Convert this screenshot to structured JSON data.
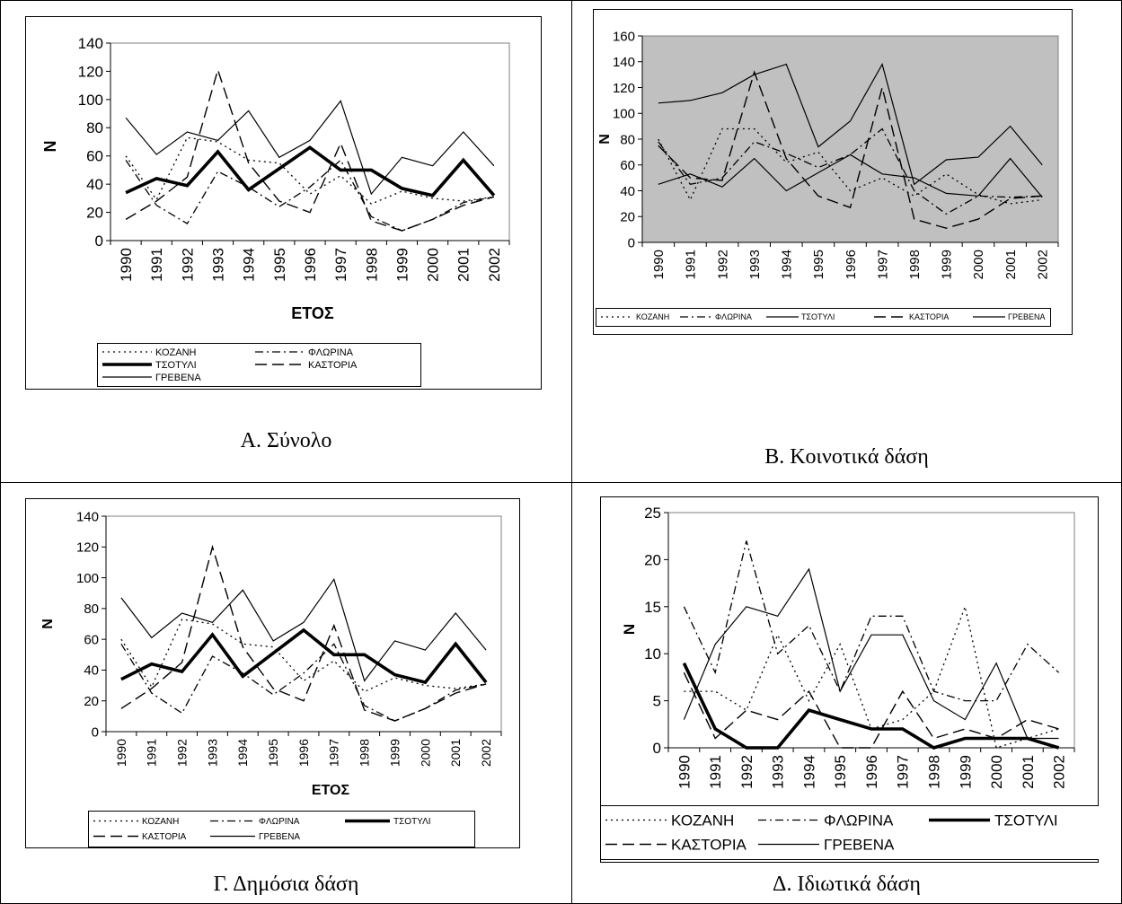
{
  "panels": [
    {
      "caption": "Α. Σύνολο",
      "chart_data": {
        "type": "line",
        "categories": [
          "1990",
          "1991",
          "1992",
          "1993",
          "1994",
          "1995",
          "1996",
          "1997",
          "1998",
          "1999",
          "2000",
          "2001",
          "2002"
        ],
        "ylabel": "N",
        "xlabel": "ΕΤΟΣ",
        "ylim": [
          0,
          140
        ],
        "ystep": 20,
        "background": "#ffffff",
        "legend_columns": 2,
        "series": [
          {
            "name": "ΚΟΖΑΝΗ",
            "style": "dotted",
            "values": [
              60,
              29,
              73,
              70,
              57,
              55,
              33,
              46,
              26,
              35,
              30,
              28,
              31
            ]
          },
          {
            "name": "ΦΛΩΡΙΝΑ",
            "style": "dashdot",
            "values": [
              57,
              25,
              12,
              49,
              38,
              24,
              38,
              57,
              17,
              7,
              15,
              27,
              31
            ]
          },
          {
            "name": "ΤΣΟΤΥΛΙ",
            "style": "thick",
            "values": [
              34,
              44,
              39,
              63,
              36,
              51,
              66,
              50,
              50,
              37,
              32,
              57,
              32
            ]
          },
          {
            "name": "ΚΑΣΤΟΡΙΑ",
            "style": "longdash",
            "values": [
              15,
              28,
              45,
              121,
              55,
              28,
              20,
              69,
              14,
              7,
              15,
              25,
              31
            ]
          },
          {
            "name": "ΓΡΕΒΕΝΑ",
            "style": "solid",
            "values": [
              87,
              61,
              77,
              71,
              92,
              59,
              71,
              99,
              33,
              59,
              53,
              77,
              53
            ]
          }
        ]
      }
    },
    {
      "caption": "Β. Κοινοτικά δάση",
      "chart_data": {
        "type": "line",
        "categories": [
          "1990",
          "1991",
          "1992",
          "1993",
          "1994",
          "1995",
          "1996",
          "1997",
          "1998",
          "1999",
          "2000",
          "2001",
          "2002"
        ],
        "ylabel": "N",
        "xlabel": "",
        "ylim": [
          0,
          160
        ],
        "ystep": 20,
        "background": "#c0c0c0",
        "legend_columns": 5,
        "series": [
          {
            "name": "ΚΟΖΑΝΗ",
            "style": "dotted",
            "values": [
              80,
              33,
              88,
              88,
              62,
              70,
              40,
              50,
              36,
              53,
              37,
              30,
              33
            ]
          },
          {
            "name": "ΦΛΩΡΙΝΑ",
            "style": "dashdot",
            "values": [
              78,
              45,
              50,
              78,
              69,
              58,
              68,
              88,
              40,
              22,
              36,
              35,
              36
            ]
          },
          {
            "name": "ΤΣΟΤΥΛΙ",
            "style": "solid",
            "values": [
              45,
              53,
              43,
              65,
              40,
              54,
              68,
              53,
              50,
              38,
              36,
              65,
              35
            ]
          },
          {
            "name": "ΚΑΣΤΟΡΙΑ",
            "style": "longdash",
            "values": [
              75,
              50,
              48,
              132,
              65,
              36,
              27,
              120,
              18,
              11,
              18,
              34,
              36
            ]
          },
          {
            "name": "ΓΡΕΒΕΝΑ",
            "style": "solid",
            "values": [
              108,
              110,
              116,
              130,
              138,
              74,
              94,
              138,
              45,
              64,
              66,
              90,
              60
            ]
          }
        ]
      }
    },
    {
      "caption": "Γ. Δημόσια δάση",
      "chart_data": {
        "type": "line",
        "categories": [
          "1990",
          "1991",
          "1992",
          "1993",
          "1994",
          "1995",
          "1996",
          "1997",
          "1998",
          "1999",
          "2000",
          "2001",
          "2002"
        ],
        "ylabel": "N",
        "xlabel": "ΕΤΟΣ",
        "ylim": [
          0,
          140
        ],
        "ystep": 20,
        "background": "#ffffff",
        "legend_columns": 3,
        "series": [
          {
            "name": "ΚΟΖΑΝΗ",
            "style": "dotted",
            "values": [
              60,
              29,
              73,
              70,
              57,
              55,
              33,
              46,
              26,
              35,
              30,
              28,
              31
            ]
          },
          {
            "name": "ΦΛΩΡΙΝΑ",
            "style": "dashdot",
            "values": [
              57,
              25,
              12,
              49,
              38,
              24,
              38,
              57,
              17,
              7,
              15,
              27,
              31
            ]
          },
          {
            "name": "ΤΣΟΤΥΛΙ",
            "style": "thick",
            "values": [
              34,
              44,
              39,
              63,
              36,
              51,
              66,
              50,
              50,
              37,
              32,
              57,
              32
            ]
          },
          {
            "name": "ΚΑΣΤΟΡΙΑ",
            "style": "longdash",
            "values": [
              15,
              28,
              45,
              120,
              55,
              28,
              20,
              69,
              14,
              7,
              15,
              25,
              31
            ]
          },
          {
            "name": "ΓΡΕΒΕΝΑ",
            "style": "solid",
            "values": [
              87,
              61,
              77,
              71,
              92,
              59,
              71,
              99,
              33,
              59,
              53,
              77,
              53
            ]
          }
        ]
      }
    },
    {
      "caption": "Δ. Ιδιωτικά δάση",
      "chart_data": {
        "type": "line",
        "categories": [
          "1990",
          "1991",
          "1992",
          "1993",
          "1994",
          "1995",
          "1996",
          "1997",
          "1998",
          "1999",
          "2000",
          "2001",
          "2002"
        ],
        "ylabel": "N",
        "xlabel": "",
        "ylim": [
          0,
          25
        ],
        "ystep": 5,
        "background": "#ffffff",
        "legend_columns": 3,
        "series": [
          {
            "name": "ΚΟΖΑΝΗ",
            "style": "dotted",
            "values": [
              6,
              6,
              4,
              12,
              5,
              11,
              2,
              3,
              6,
              15,
              0,
              1,
              2
            ]
          },
          {
            "name": "ΦΛΩΡΙΝΑ",
            "style": "dashdot",
            "values": [
              15,
              8,
              22,
              10,
              13,
              6,
              14,
              14,
              6,
              5,
              5,
              11,
              8
            ]
          },
          {
            "name": "ΤΣΟΤΥΛΙ",
            "style": "thick",
            "values": [
              9,
              2,
              0,
              0,
              4,
              3,
              2,
              2,
              0,
              1,
              1,
              1,
              0
            ]
          },
          {
            "name": "ΚΑΣΤΟΡΙΑ",
            "style": "longdash",
            "values": [
              8,
              1,
              4,
              3,
              6,
              0,
              0,
              6,
              1,
              2,
              1,
              3,
              2
            ]
          },
          {
            "name": "ΓΡΕΒΕΝΑ",
            "style": "solid",
            "values": [
              3,
              11,
              15,
              14,
              19,
              6,
              12,
              12,
              5,
              3,
              9,
              1,
              1
            ]
          }
        ]
      }
    }
  ]
}
